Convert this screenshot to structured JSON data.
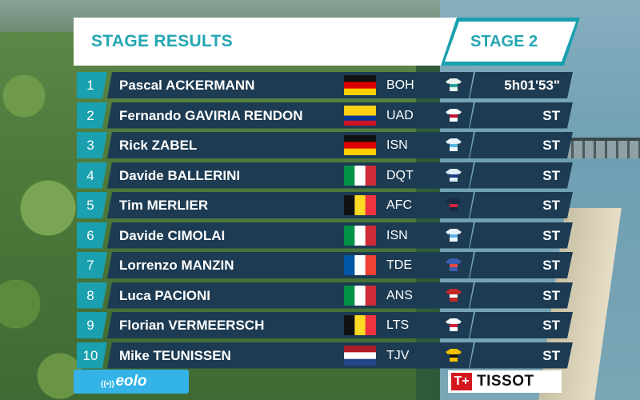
{
  "header": {
    "title": "STAGE RESULTS",
    "stage": "STAGE 2"
  },
  "rows": [
    {
      "pos": "1",
      "name": "Pascal ACKERMANN",
      "flag": "de",
      "team": "BOH",
      "jersey": "boh",
      "time": "5h01'53\""
    },
    {
      "pos": "2",
      "name": "Fernando GAVIRIA RENDON",
      "flag": "co",
      "team": "UAD",
      "jersey": "uad",
      "time": "ST"
    },
    {
      "pos": "3",
      "name": "Rick ZABEL",
      "flag": "de",
      "team": "ISN",
      "jersey": "isn",
      "time": "ST"
    },
    {
      "pos": "4",
      "name": "Davide BALLERINI",
      "flag": "it",
      "team": "DQT",
      "jersey": "dqt",
      "time": "ST"
    },
    {
      "pos": "5",
      "name": "Tim MERLIER",
      "flag": "be",
      "team": "AFC",
      "jersey": "afc",
      "time": "ST"
    },
    {
      "pos": "6",
      "name": "Davide CIMOLAI",
      "flag": "it",
      "team": "ISN",
      "jersey": "isn",
      "time": "ST"
    },
    {
      "pos": "7",
      "name": "Lorrenzo MANZIN",
      "flag": "fr",
      "team": "TDE",
      "jersey": "tde",
      "time": "ST"
    },
    {
      "pos": "8",
      "name": "Luca PACIONI",
      "flag": "it",
      "team": "ANS",
      "jersey": "ans",
      "time": "ST"
    },
    {
      "pos": "9",
      "name": "Florian VERMEERSCH",
      "flag": "be",
      "team": "LTS",
      "jersey": "lts",
      "time": "ST"
    },
    {
      "pos": "10",
      "name": "Mike TEUNISSEN",
      "flag": "nl",
      "team": "TJV",
      "jersey": "tjv",
      "time": "ST"
    }
  ],
  "flags": {
    "de": {
      "type": "h",
      "colors": [
        "#111111",
        "#dd0000",
        "#ffce00"
      ]
    },
    "co": {
      "type": "h3",
      "colors": [
        "#fcd116",
        "#003893",
        "#ce1126"
      ]
    },
    "it": {
      "type": "v",
      "colors": [
        "#009246",
        "#ffffff",
        "#ce2b37"
      ]
    },
    "be": {
      "type": "v",
      "colors": [
        "#111111",
        "#fdda24",
        "#ef3340"
      ]
    },
    "fr": {
      "type": "v",
      "colors": [
        "#0055a4",
        "#ffffff",
        "#ef4135"
      ]
    },
    "nl": {
      "type": "h",
      "colors": [
        "#ae1c28",
        "#ffffff",
        "#21468b"
      ]
    }
  },
  "jerseys": {
    "boh": {
      "body": "#e8f2ee",
      "accent": "#2aa198"
    },
    "uad": {
      "body": "#ffffff",
      "accent": "#c8102e"
    },
    "isn": {
      "body": "#e9f4fb",
      "accent": "#5ab4e5"
    },
    "dqt": {
      "body": "#dfeef8",
      "accent": "#1c3f8a"
    },
    "afc": {
      "body": "#1d2a44",
      "accent": "#d2233c"
    },
    "tde": {
      "body": "#3b5fb0",
      "accent": "#e04848"
    },
    "ans": {
      "body": "#c62828",
      "accent": "#ffffff"
    },
    "lts": {
      "body": "#ffffff",
      "accent": "#d2233c"
    },
    "tjv": {
      "body": "#f2c200",
      "accent": "#111111"
    }
  },
  "sponsors": {
    "left": "eolo",
    "right_mark": "T+",
    "right": "TISSOT"
  },
  "colors": {
    "accent": "#1aa0ae",
    "band": "#1d3b52",
    "title_text": "#24a6b3"
  }
}
